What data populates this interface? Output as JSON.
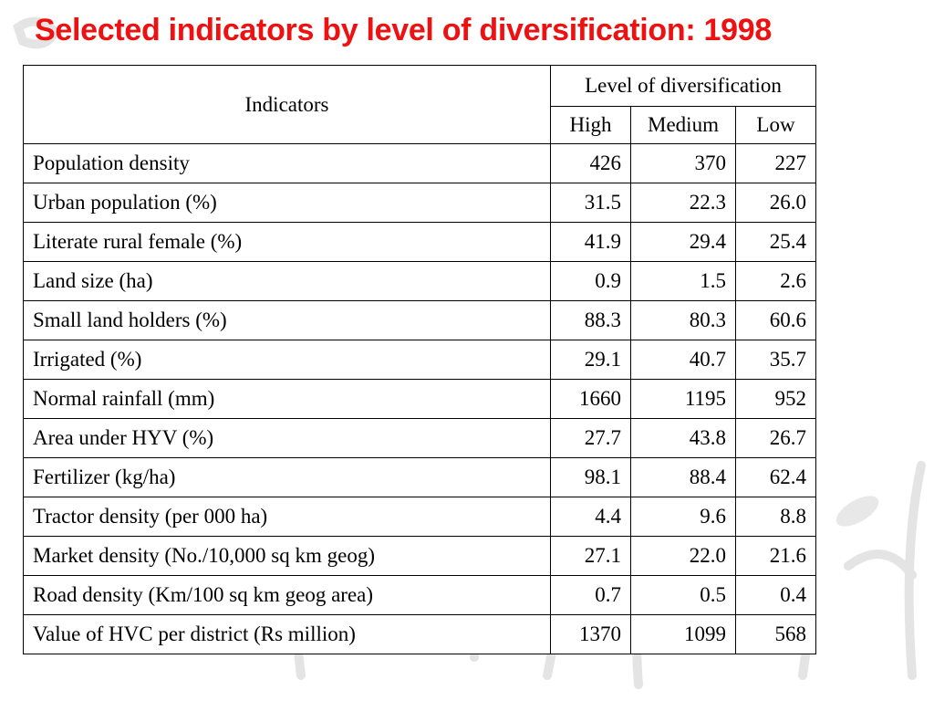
{
  "title": "Selected indicators by level of diversification: 1998",
  "colors": {
    "title": "#ee1111",
    "grid": "#000000",
    "watermark": "#e6e6e6"
  },
  "table": {
    "indicators_header": "Indicators",
    "group_header": "Level  of diversification",
    "levels": [
      "High",
      "Medium",
      "Low"
    ],
    "rows": [
      {
        "label": "Population density",
        "values": [
          "426",
          "370",
          "227"
        ]
      },
      {
        "label": "Urban population (%)",
        "values": [
          "31.5",
          "22.3",
          "26.0"
        ]
      },
      {
        "label": "Literate rural female (%)",
        "values": [
          "41.9",
          "29.4",
          "25.4"
        ]
      },
      {
        "label": "Land size (ha)",
        "values": [
          "0.9",
          "1.5",
          "2.6"
        ]
      },
      {
        "label": "Small land holders (%)",
        "values": [
          "88.3",
          "80.3",
          "60.6"
        ]
      },
      {
        "label": "Irrigated (%)",
        "values": [
          "29.1",
          "40.7",
          "35.7"
        ]
      },
      {
        "label": "Normal rainfall (mm)",
        "values": [
          "1660",
          "1195",
          "952"
        ]
      },
      {
        "label": "Area under HYV (%)",
        "values": [
          "27.7",
          "43.8",
          "26.7"
        ]
      },
      {
        "label": "Fertilizer (kg/ha)",
        "values": [
          "98.1",
          "88.4",
          "62.4"
        ]
      },
      {
        "label": "Tractor density (per 000 ha)",
        "values": [
          "4.4",
          "9.6",
          "8.8"
        ]
      },
      {
        "label": "Market density (No./10,000 sq km geog)",
        "values": [
          "27.1",
          "22.0",
          "21.6"
        ]
      },
      {
        "label": "Road density (Km/100 sq km geog area)",
        "values": [
          "0.7",
          "0.5",
          "0.4"
        ]
      },
      {
        "label": "Value of HVC per district (Rs million)",
        "values": [
          "1370",
          "1099",
          "568"
        ]
      }
    ]
  }
}
